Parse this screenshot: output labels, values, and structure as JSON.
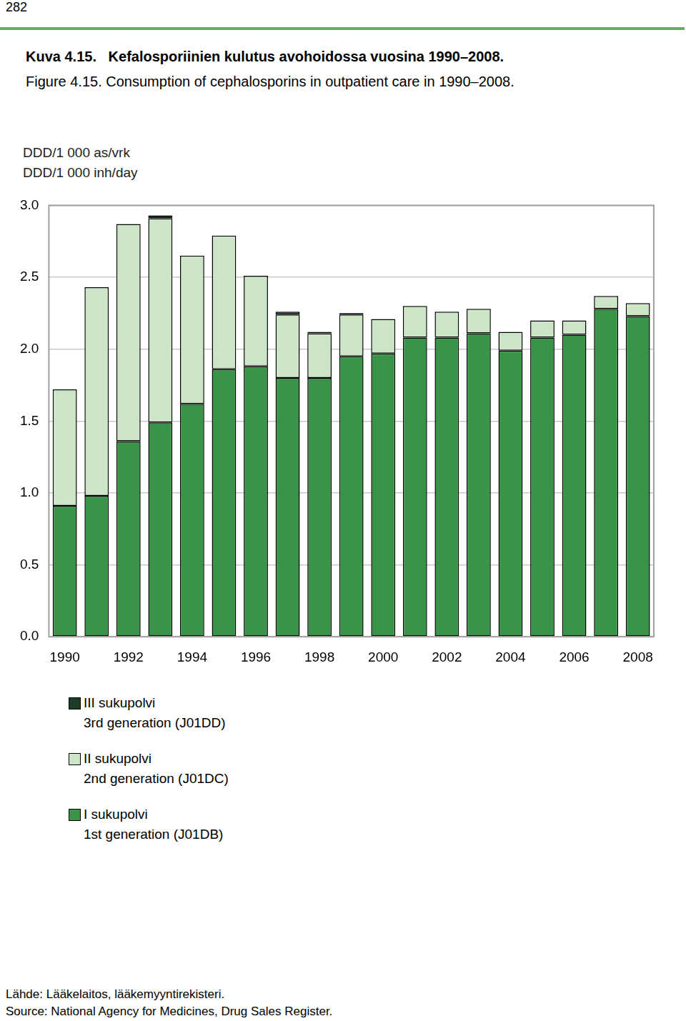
{
  "chart_data": {
    "type": "bar",
    "page_number": "282",
    "title": "Kuva 4.15.   Kefalosporiinien kulutus avohoidossa vuosina 1990–2008.",
    "subtitle": "Figure 4.15. Consumption of cephalosporins in outpatient care in 1990–2008.",
    "ylabel": [
      "DDD/1 000 as/vrk",
      "DDD/1 000 inh/day"
    ],
    "categories": [
      "1990",
      null,
      "1992",
      null,
      "1994",
      null,
      "1996",
      null,
      "1998",
      null,
      "2000",
      null,
      "2002",
      null,
      "2004",
      null,
      "2006",
      null,
      "2008"
    ],
    "series": [
      {
        "name": [
          "I sukupolvi",
          "1st generation (J01DB)"
        ],
        "color": "#3a9448",
        "values": [
          0.91,
          0.98,
          1.36,
          1.49,
          1.62,
          1.86,
          1.88,
          1.8,
          1.8,
          1.95,
          1.97,
          2.08,
          2.08,
          2.11,
          1.99,
          2.08,
          2.1,
          2.28,
          2.23
        ]
      },
      {
        "name": [
          "II sukupolvi",
          "2nd generation (J01DC)"
        ],
        "color": "#cce5c6",
        "values": [
          0.81,
          1.45,
          1.51,
          1.42,
          1.03,
          0.93,
          0.63,
          0.44,
          0.31,
          0.29,
          0.24,
          0.22,
          0.18,
          0.17,
          0.13,
          0.12,
          0.1,
          0.09,
          0.09
        ]
      },
      {
        "name": [
          "III sukupolvi",
          "3rd generation (J01DD)"
        ],
        "color": "#1e3d29",
        "values": [
          0,
          0,
          0,
          0.02,
          0,
          0,
          0,
          0.02,
          0.01,
          0.01,
          0,
          0,
          0,
          0,
          0,
          0,
          0,
          0,
          0
        ]
      }
    ],
    "stacked": true,
    "ylim": [
      0,
      3
    ],
    "yticks": [
      {
        "value": 0,
        "label": "0.0"
      },
      0.5,
      {
        "value": 1,
        "label": "1.0"
      },
      1.5,
      {
        "value": 2,
        "label": "2.0"
      },
      2.5,
      {
        "value": 3,
        "label": "3.0"
      }
    ],
    "grid": true,
    "legend": "bottom",
    "source": [
      "Lähde: Lääkelaitos, lääkemyyntirekisteri.",
      "Source: National Agency for Medicines, Drug Sales Register."
    ]
  }
}
